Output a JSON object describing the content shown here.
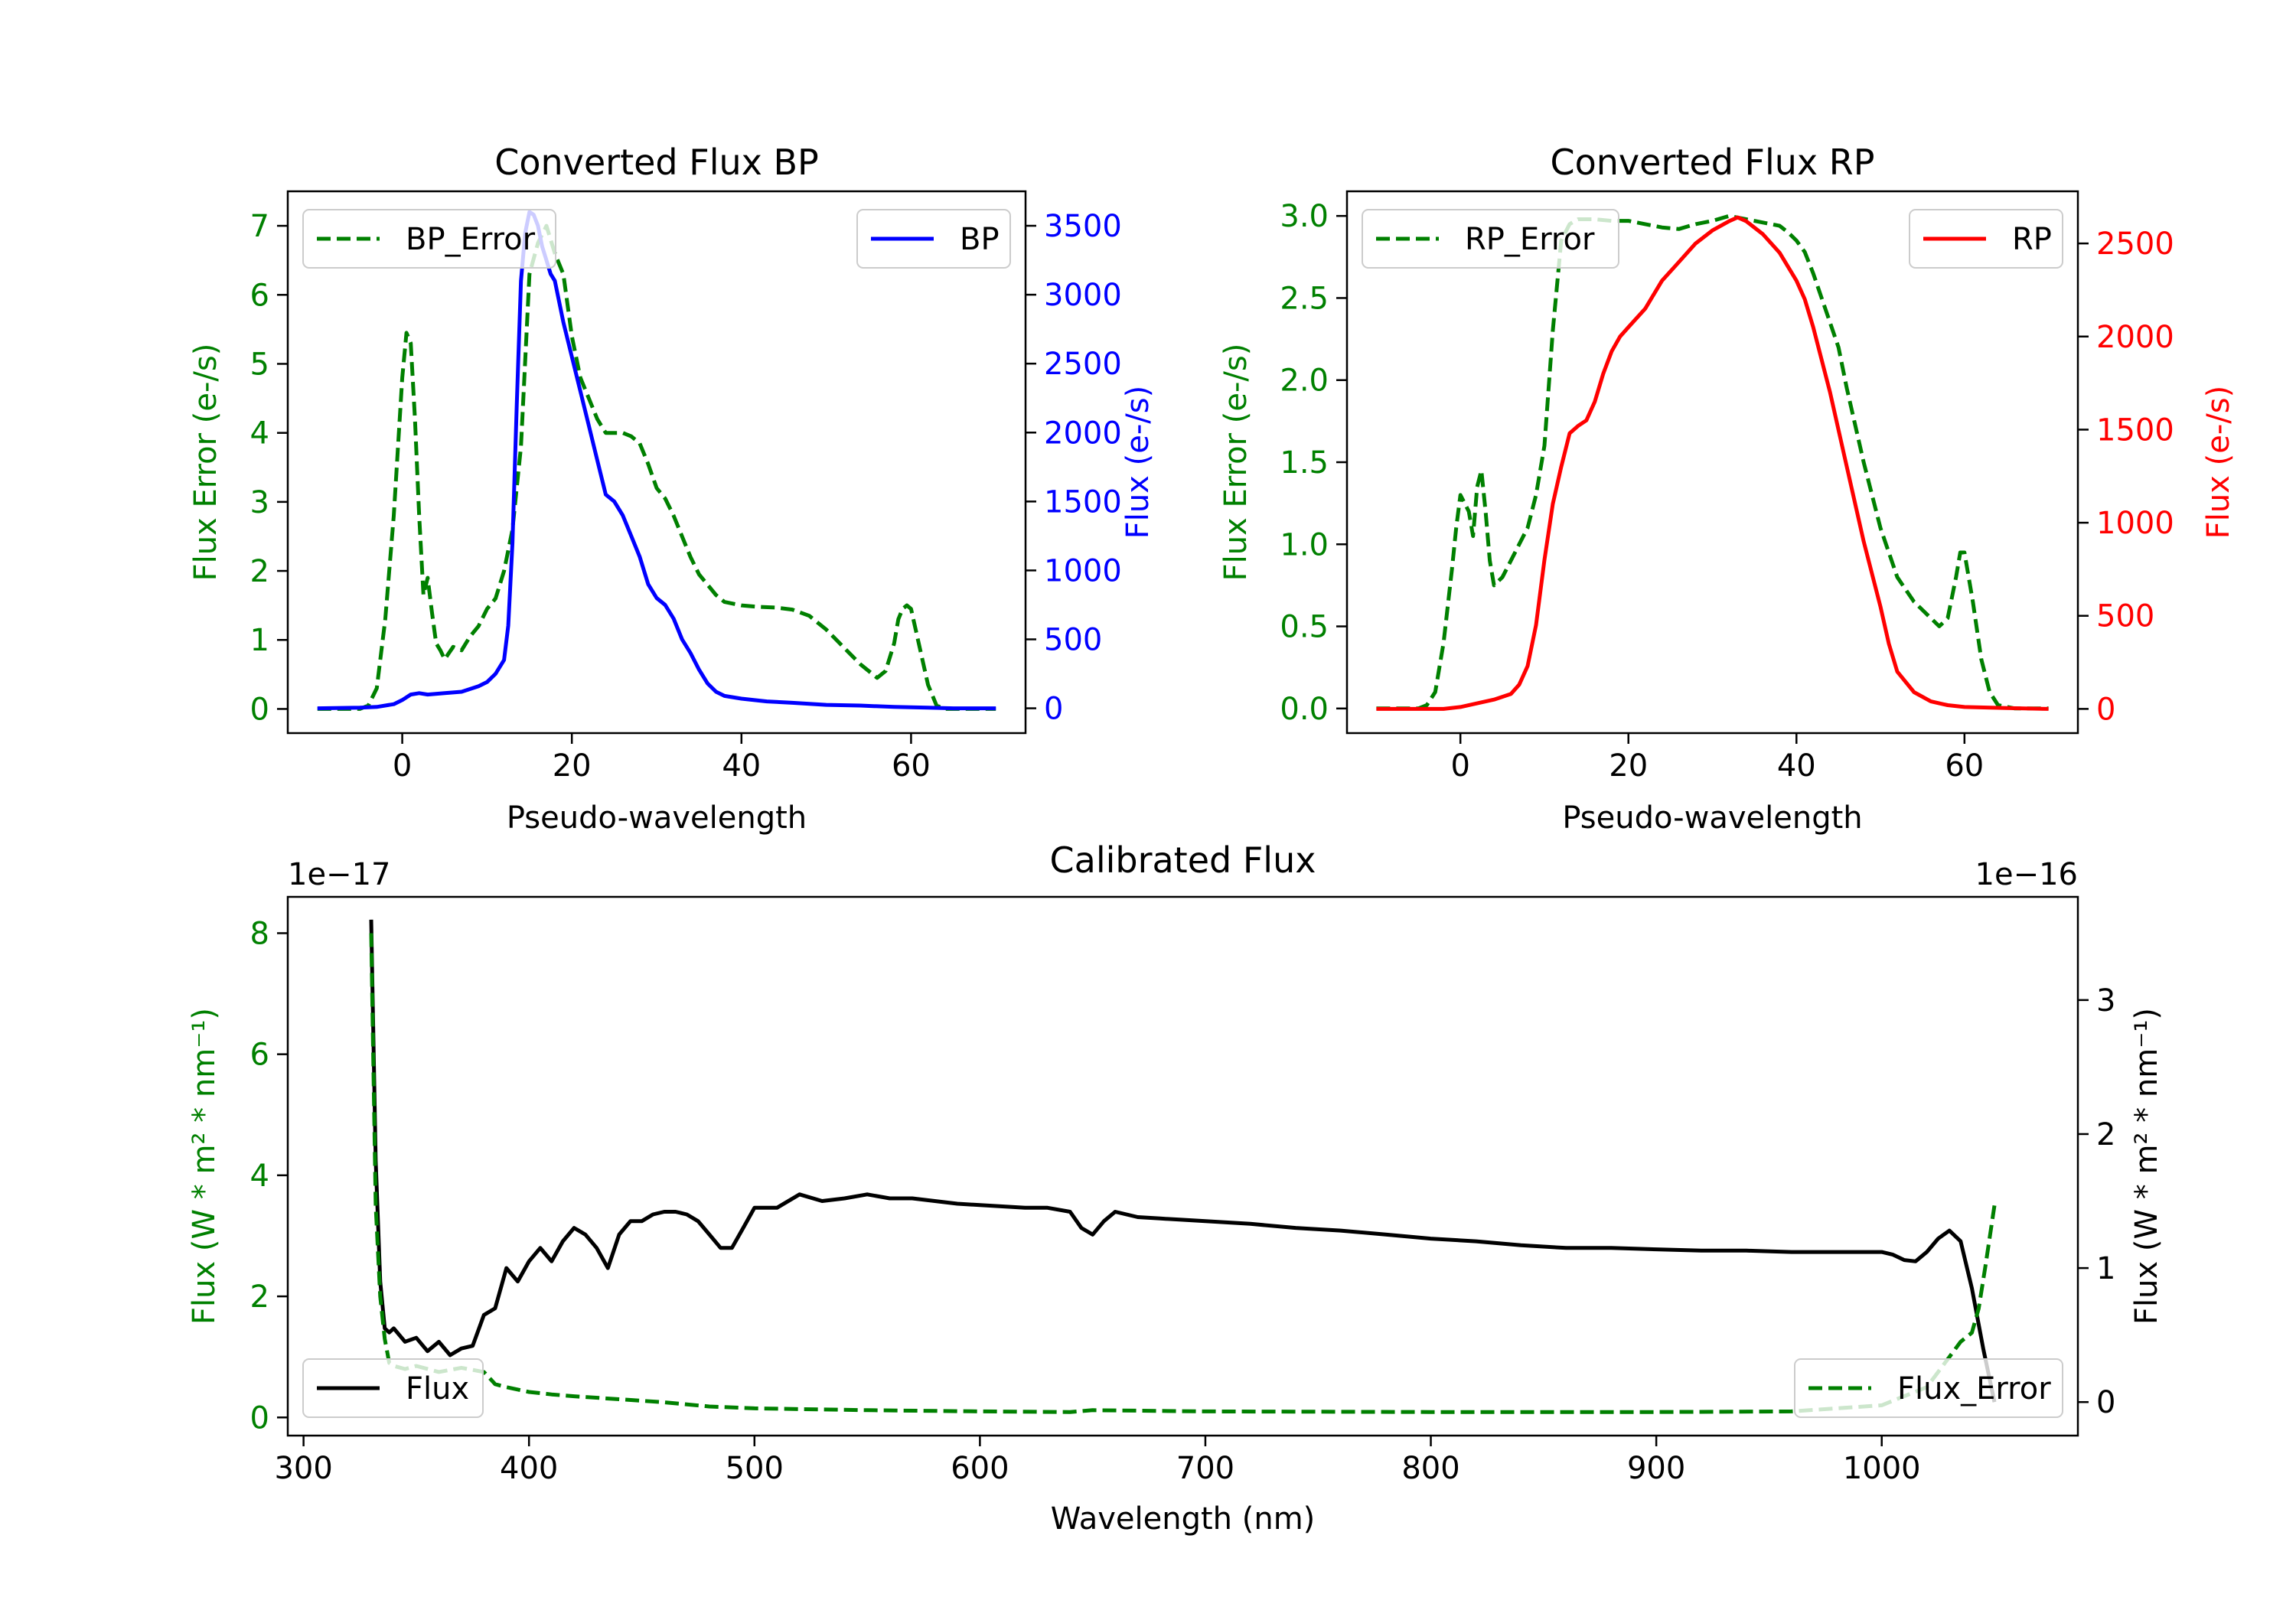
{
  "chart_data": [
    {
      "id": "bp",
      "type": "line",
      "title": "Converted Flux BP",
      "xlabel": "Pseudo-wavelength",
      "xlim": [
        -13.5,
        73.5
      ],
      "x_ticks": [
        0,
        20,
        40,
        60
      ],
      "left_axis": {
        "label": "Flux Error (e-/s)",
        "color": "#008000",
        "ylim": [
          -0.35,
          7.5
        ],
        "ticks": [
          0,
          1,
          2,
          3,
          4,
          5,
          6,
          7
        ]
      },
      "right_axis": {
        "label": "Flux (e-/s)",
        "color": "#0000ff",
        "ylim": [
          -180,
          3750
        ],
        "ticks": [
          0,
          500,
          1000,
          1500,
          2000,
          2500,
          3000,
          3500
        ]
      },
      "legends": [
        {
          "position": "upper-left",
          "entries": [
            {
              "label": "BP_Error",
              "series": "BP_Error"
            }
          ]
        },
        {
          "position": "upper-right",
          "entries": [
            {
              "label": "BP",
              "series": "BP"
            }
          ]
        }
      ],
      "series": [
        {
          "name": "BP_Error",
          "axis": "left",
          "color": "#008000",
          "dash": true,
          "x": [
            -10,
            -5,
            -4,
            -3,
            -2,
            -1,
            0,
            0.5,
            1,
            1.5,
            2,
            2.5,
            3,
            3.5,
            4,
            4.5,
            5,
            6,
            7,
            8,
            9,
            10,
            11,
            12,
            13,
            14,
            15,
            16,
            17,
            18,
            19,
            20,
            21,
            22,
            23,
            24,
            25,
            26,
            27,
            28,
            29,
            30,
            31,
            32,
            33,
            34,
            35,
            36,
            37,
            38,
            40,
            42,
            44,
            46,
            48,
            50,
            52,
            54,
            56,
            57,
            58,
            58.5,
            59,
            59.5,
            60,
            61,
            62,
            63,
            64,
            66,
            68,
            70
          ],
          "values": [
            0,
            0,
            0.05,
            0.3,
            1.3,
            2.8,
            4.8,
            5.45,
            5.3,
            4.2,
            2.8,
            1.65,
            1.9,
            1.4,
            0.95,
            0.85,
            0.72,
            0.9,
            0.85,
            1.05,
            1.2,
            1.45,
            1.6,
            2.0,
            2.6,
            3.8,
            6.3,
            6.75,
            7.0,
            6.6,
            6.3,
            5.4,
            4.8,
            4.5,
            4.2,
            4.0,
            4.0,
            4.0,
            3.95,
            3.85,
            3.55,
            3.2,
            3.05,
            2.8,
            2.5,
            2.2,
            1.95,
            1.8,
            1.65,
            1.55,
            1.5,
            1.48,
            1.47,
            1.44,
            1.35,
            1.15,
            0.9,
            0.65,
            0.45,
            0.55,
            0.95,
            1.3,
            1.45,
            1.5,
            1.45,
            0.9,
            0.35,
            0.05,
            0,
            0,
            0,
            0
          ]
        },
        {
          "name": "BP",
          "axis": "right",
          "color": "#0000ff",
          "dash": false,
          "x": [
            -10,
            -5,
            -3,
            -1,
            0,
            1,
            2,
            3,
            5,
            7,
            9,
            10,
            11,
            12,
            12.5,
            13,
            13.5,
            14,
            14.5,
            15,
            15.5,
            16,
            16.5,
            17,
            17.5,
            18,
            19,
            20,
            21,
            22,
            23,
            24,
            25,
            26,
            27,
            28,
            29,
            30,
            31,
            32,
            33,
            34,
            35,
            36,
            37,
            38,
            40,
            43,
            46,
            50,
            54,
            58,
            62,
            65,
            70
          ],
          "values": [
            0,
            5,
            10,
            30,
            60,
            100,
            110,
            100,
            110,
            120,
            160,
            190,
            250,
            350,
            600,
            1200,
            2200,
            3100,
            3450,
            3600,
            3580,
            3500,
            3350,
            3250,
            3150,
            3100,
            2800,
            2550,
            2300,
            2050,
            1800,
            1550,
            1500,
            1400,
            1250,
            1100,
            900,
            800,
            750,
            650,
            500,
            400,
            280,
            180,
            120,
            90,
            70,
            50,
            40,
            25,
            20,
            10,
            5,
            0,
            0
          ]
        }
      ]
    },
    {
      "id": "rp",
      "type": "line",
      "title": "Converted Flux RP",
      "xlabel": "Pseudo-wavelength",
      "xlim": [
        -13.5,
        73.5
      ],
      "x_ticks": [
        0,
        20,
        40,
        60
      ],
      "left_axis": {
        "label": "Flux Error (e-/s)",
        "color": "#008000",
        "ylim": [
          -0.15,
          3.15
        ],
        "ticks": [
          "0.0",
          "0.5",
          "1.0",
          "1.5",
          "2.0",
          "2.5",
          "3.0"
        ]
      },
      "right_axis": {
        "label": "Flux (e-/s)",
        "color": "#ff0000",
        "ylim": [
          -130,
          2780
        ],
        "ticks": [
          0,
          500,
          1000,
          1500,
          2000,
          2500
        ]
      },
      "legends": [
        {
          "position": "upper-left",
          "entries": [
            {
              "label": "RP_Error",
              "series": "RP_Error"
            }
          ]
        },
        {
          "position": "upper-right",
          "entries": [
            {
              "label": "RP",
              "series": "RP"
            }
          ]
        }
      ],
      "series": [
        {
          "name": "RP_Error",
          "axis": "left",
          "color": "#008000",
          "dash": true,
          "x": [
            -10,
            -5,
            -4,
            -3,
            -2,
            -1,
            -0.5,
            0,
            0.5,
            1,
            1.5,
            2,
            2.5,
            3,
            3.5,
            4,
            5,
            6,
            7,
            8,
            9,
            10,
            11,
            12,
            13,
            14,
            16,
            18,
            20,
            22,
            24,
            26,
            28,
            30,
            32,
            34,
            36,
            38,
            39,
            40,
            41,
            42,
            43,
            44,
            45,
            46,
            48,
            50,
            52,
            54,
            56,
            57,
            58,
            59,
            59.5,
            60,
            61,
            62,
            63,
            64,
            66,
            70
          ],
          "values": [
            0,
            0,
            0.02,
            0.1,
            0.4,
            0.85,
            1.1,
            1.3,
            1.25,
            1.2,
            1.05,
            1.35,
            1.45,
            1.2,
            0.9,
            0.75,
            0.8,
            0.9,
            1.0,
            1.1,
            1.3,
            1.6,
            2.3,
            2.85,
            2.95,
            2.98,
            2.98,
            2.97,
            2.97,
            2.95,
            2.93,
            2.92,
            2.95,
            2.97,
            3.0,
            2.98,
            2.96,
            2.94,
            2.9,
            2.85,
            2.78,
            2.65,
            2.5,
            2.35,
            2.2,
            1.95,
            1.5,
            1.1,
            0.8,
            0.65,
            0.55,
            0.5,
            0.55,
            0.8,
            0.95,
            0.95,
            0.65,
            0.3,
            0.1,
            0.02,
            0,
            0
          ]
        },
        {
          "name": "RP",
          "axis": "right",
          "color": "#ff0000",
          "dash": false,
          "x": [
            -10,
            -5,
            -2,
            0,
            2,
            4,
            6,
            7,
            8,
            9,
            10,
            11,
            12,
            13,
            14,
            15,
            16,
            17,
            18,
            19,
            20,
            22,
            24,
            26,
            28,
            30,
            32,
            33,
            34,
            36,
            38,
            40,
            41,
            42,
            44,
            46,
            48,
            50,
            51,
            52,
            54,
            56,
            58,
            60,
            65,
            70
          ],
          "values": [
            0,
            0,
            0,
            10,
            30,
            50,
            80,
            130,
            230,
            450,
            800,
            1100,
            1300,
            1480,
            1520,
            1550,
            1650,
            1800,
            1920,
            2000,
            2050,
            2150,
            2300,
            2400,
            2500,
            2570,
            2620,
            2640,
            2620,
            2550,
            2450,
            2300,
            2200,
            2050,
            1700,
            1300,
            900,
            550,
            350,
            200,
            90,
            40,
            20,
            10,
            5,
            0
          ]
        }
      ]
    },
    {
      "id": "cal",
      "type": "line",
      "title": "Calibrated Flux",
      "xlabel": "Wavelength (nm)",
      "xlim": [
        293,
        1087
      ],
      "x_ticks": [
        300,
        400,
        500,
        600,
        700,
        800,
        900,
        1000
      ],
      "left_axis": {
        "label": "Flux (W * m² * nm⁻¹)",
        "color": "#008000",
        "ylim": [
          -0.3,
          8.6
        ],
        "ticks": [
          0,
          2,
          4,
          6,
          8
        ],
        "offset": "1e−17"
      },
      "right_axis": {
        "label": "Flux (W * m² * nm⁻¹)",
        "color": "#000000",
        "ylim": [
          -0.25,
          3.77
        ],
        "ticks": [
          0,
          1,
          2,
          3
        ],
        "offset": "1e−16"
      },
      "legends": [
        {
          "position": "lower-left",
          "entries": [
            {
              "label": "Flux",
              "series": "Flux"
            }
          ]
        },
        {
          "position": "lower-right",
          "entries": [
            {
              "label": "Flux_Error",
              "series": "Flux_Error"
            }
          ]
        }
      ],
      "series": [
        {
          "name": "Flux",
          "axis": "right",
          "color": "#000000",
          "dash": false,
          "x": [
            330,
            332,
            334,
            336,
            338,
            340,
            345,
            350,
            355,
            360,
            365,
            370,
            375,
            380,
            385,
            390,
            395,
            400,
            405,
            410,
            415,
            420,
            425,
            430,
            435,
            440,
            445,
            450,
            455,
            460,
            465,
            470,
            475,
            480,
            485,
            490,
            495,
            500,
            505,
            510,
            520,
            530,
            540,
            550,
            560,
            570,
            580,
            590,
            600,
            610,
            620,
            630,
            640,
            645,
            650,
            655,
            660,
            665,
            670,
            680,
            690,
            700,
            720,
            740,
            760,
            780,
            800,
            820,
            840,
            860,
            880,
            900,
            920,
            940,
            960,
            980,
            1000,
            1005,
            1010,
            1015,
            1020,
            1025,
            1030,
            1035,
            1040,
            1045,
            1050
          ],
          "values": [
            3.6,
            1.8,
            0.9,
            0.55,
            0.52,
            0.55,
            0.45,
            0.48,
            0.38,
            0.45,
            0.35,
            0.4,
            0.42,
            0.65,
            0.7,
            1.0,
            0.9,
            1.05,
            1.15,
            1.05,
            1.2,
            1.3,
            1.25,
            1.15,
            1.0,
            1.25,
            1.35,
            1.35,
            1.4,
            1.42,
            1.42,
            1.4,
            1.35,
            1.25,
            1.15,
            1.15,
            1.3,
            1.45,
            1.45,
            1.45,
            1.55,
            1.5,
            1.52,
            1.55,
            1.52,
            1.52,
            1.5,
            1.48,
            1.47,
            1.46,
            1.45,
            1.45,
            1.42,
            1.3,
            1.25,
            1.35,
            1.42,
            1.4,
            1.38,
            1.37,
            1.36,
            1.35,
            1.33,
            1.3,
            1.28,
            1.25,
            1.22,
            1.2,
            1.17,
            1.15,
            1.15,
            1.14,
            1.13,
            1.13,
            1.12,
            1.12,
            1.12,
            1.1,
            1.06,
            1.05,
            1.12,
            1.22,
            1.28,
            1.2,
            0.85,
            0.4,
            0.0
          ]
        },
        {
          "name": "Flux_Error",
          "axis": "left",
          "color": "#008000",
          "dash": true,
          "x": [
            330,
            332,
            334,
            336,
            338,
            340,
            345,
            350,
            360,
            370,
            380,
            385,
            390,
            400,
            410,
            420,
            440,
            460,
            480,
            500,
            550,
            600,
            640,
            650,
            700,
            800,
            900,
            960,
            1000,
            1020,
            1030,
            1035,
            1040,
            1043,
            1046,
            1050
          ],
          "values": [
            8.0,
            3.5,
            2.0,
            1.3,
            0.9,
            0.85,
            0.8,
            0.85,
            0.75,
            0.82,
            0.75,
            0.55,
            0.5,
            0.42,
            0.38,
            0.35,
            0.3,
            0.25,
            0.18,
            0.15,
            0.12,
            0.1,
            0.09,
            0.12,
            0.1,
            0.09,
            0.09,
            0.1,
            0.2,
            0.5,
            1.0,
            1.25,
            1.4,
            1.8,
            2.5,
            3.5
          ]
        }
      ]
    }
  ]
}
